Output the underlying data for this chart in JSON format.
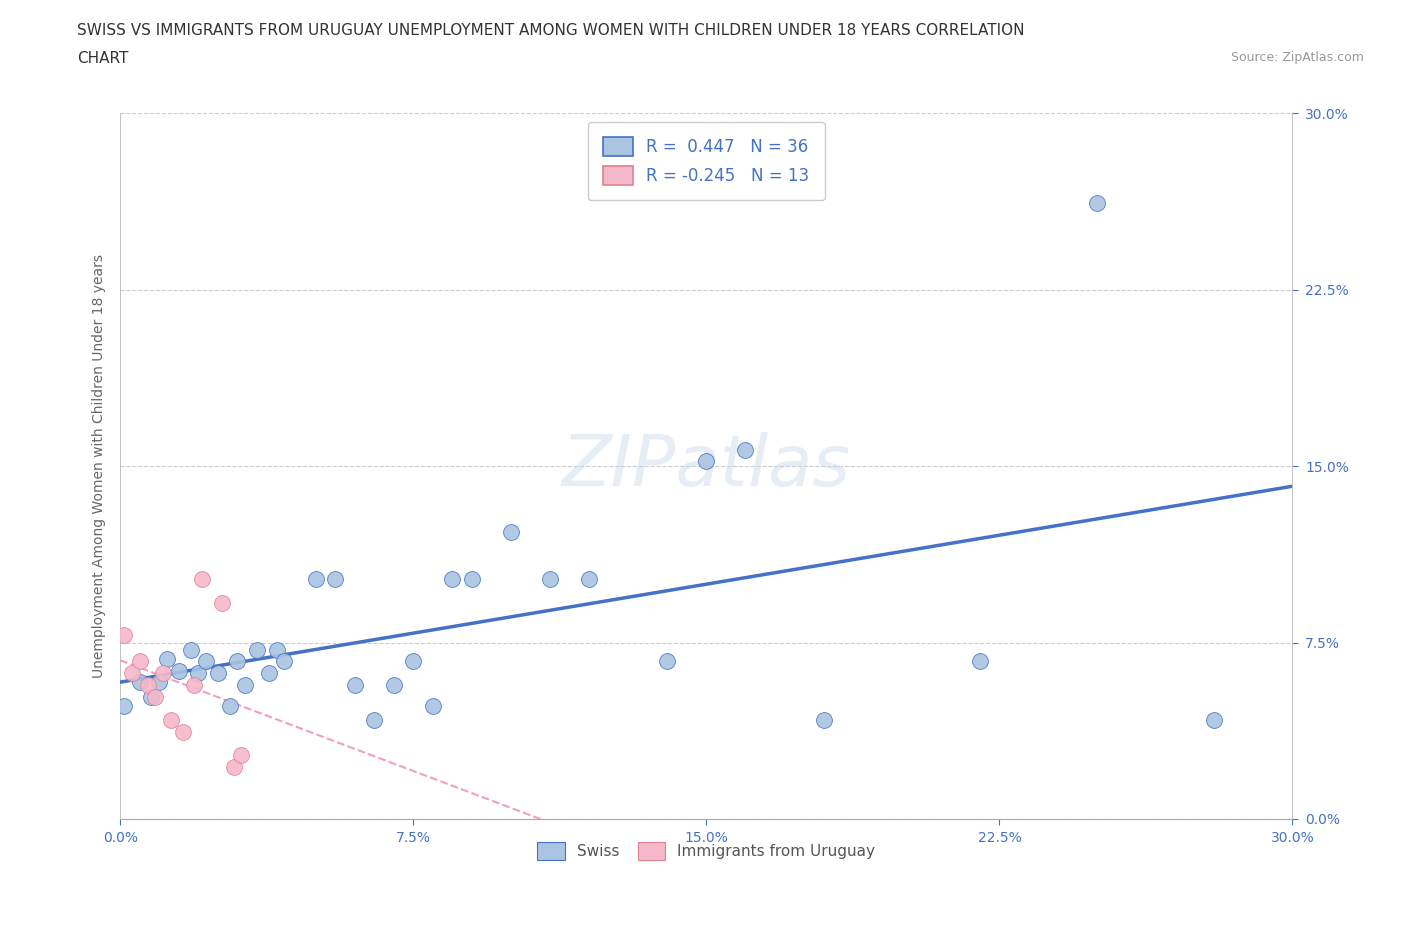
{
  "title_line1": "SWISS VS IMMIGRANTS FROM URUGUAY UNEMPLOYMENT AMONG WOMEN WITH CHILDREN UNDER 18 YEARS CORRELATION",
  "title_line2": "CHART",
  "source_text": "Source: ZipAtlas.com",
  "ylabel": "Unemployment Among Women with Children Under 18 years",
  "r_swiss": 0.447,
  "n_swiss": 36,
  "r_uruguay": -0.245,
  "n_uruguay": 13,
  "x_swiss": [
    0.001,
    0.005,
    0.008,
    0.01,
    0.012,
    0.015,
    0.018,
    0.02,
    0.022,
    0.025,
    0.028,
    0.03,
    0.032,
    0.035,
    0.038,
    0.04,
    0.042,
    0.05,
    0.055,
    0.06,
    0.065,
    0.07,
    0.075,
    0.08,
    0.085,
    0.09,
    0.1,
    0.11,
    0.12,
    0.14,
    0.15,
    0.16,
    0.18,
    0.22,
    0.25,
    0.28
  ],
  "y_swiss": [
    0.048,
    0.058,
    0.052,
    0.058,
    0.068,
    0.063,
    0.072,
    0.062,
    0.067,
    0.062,
    0.048,
    0.067,
    0.057,
    0.072,
    0.062,
    0.072,
    0.067,
    0.102,
    0.102,
    0.057,
    0.042,
    0.057,
    0.067,
    0.048,
    0.102,
    0.102,
    0.122,
    0.102,
    0.102,
    0.067,
    0.152,
    0.157,
    0.042,
    0.067,
    0.262,
    0.042
  ],
  "x_uruguay": [
    0.001,
    0.003,
    0.005,
    0.007,
    0.009,
    0.011,
    0.013,
    0.016,
    0.019,
    0.021,
    0.026,
    0.029,
    0.031
  ],
  "y_uruguay": [
    0.078,
    0.062,
    0.067,
    0.057,
    0.052,
    0.062,
    0.042,
    0.037,
    0.057,
    0.102,
    0.092,
    0.022,
    0.027
  ],
  "swiss_color": "#aac4e2",
  "uruguay_color": "#f5b8ca",
  "trend_swiss_color": "#4472c4",
  "trend_uruguay_color": "#f0a0bc",
  "watermark_text": "ZIPatlas",
  "xlim": [
    0.0,
    0.3
  ],
  "ylim": [
    0.0,
    0.3
  ],
  "xtick_vals": [
    0.0,
    0.075,
    0.15,
    0.225,
    0.3
  ],
  "ytick_vals": [
    0.0,
    0.075,
    0.15,
    0.225,
    0.3
  ],
  "xtick_labels": [
    "0.0%",
    "7.5%",
    "15.0%",
    "22.5%",
    "30.0%"
  ],
  "ytick_labels": [
    "0.0%",
    "7.5%",
    "15.0%",
    "22.5%",
    "30.0%"
  ],
  "grid_color": "#cccccc",
  "bg_color": "#ffffff",
  "tick_color": "#4472c4",
  "title_fontsize": 11,
  "axis_label_fontsize": 10,
  "tick_fontsize": 10,
  "legend_fontsize": 12,
  "source_fontsize": 9
}
